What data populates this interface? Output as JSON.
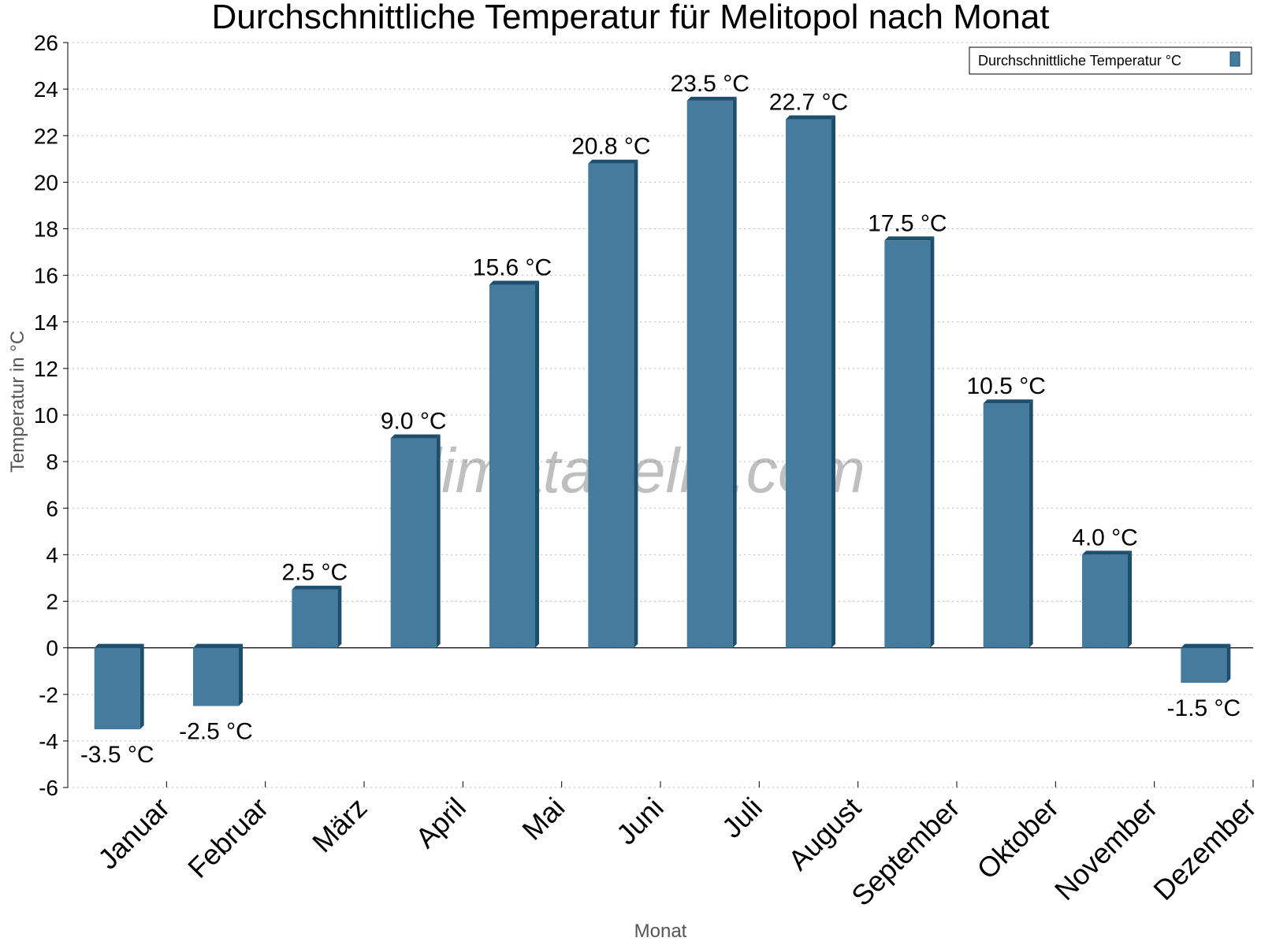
{
  "chart_data": {
    "type": "bar",
    "title": "Durchschnittliche Temperatur für Melitopol nach Monat",
    "xlabel": "Monat",
    "ylabel": "Temperatur in °C",
    "categories": [
      "Januar",
      "Februar",
      "März",
      "April",
      "Mai",
      "Juni",
      "Juli",
      "August",
      "September",
      "Oktober",
      "November",
      "Dezember"
    ],
    "series": [
      {
        "name": "Durchschnittliche Temperatur °C",
        "values": [
          -3.5,
          -2.5,
          2.5,
          9.0,
          15.6,
          20.8,
          23.5,
          22.7,
          17.5,
          10.5,
          4.0,
          -1.5
        ],
        "labels": [
          "-3.5 °C",
          "-2.5 °C",
          "2.5 °C",
          "9.0 °C",
          "15.6 °C",
          "20.8 °C",
          "23.5 °C",
          "22.7 °C",
          "17.5 °C",
          "10.5 °C",
          "4.0 °C",
          "-1.5 °C"
        ]
      }
    ],
    "ylim": [
      -6,
      26
    ],
    "yticks": [
      -6,
      -4,
      -2,
      0,
      2,
      4,
      6,
      8,
      10,
      12,
      14,
      16,
      18,
      20,
      22,
      24,
      26
    ],
    "grid": true,
    "legend_position": "top-right",
    "colors": {
      "bar": "#457b9d",
      "bar_side": "#1d4e6e"
    },
    "watermark": "klimatabelle.com"
  }
}
